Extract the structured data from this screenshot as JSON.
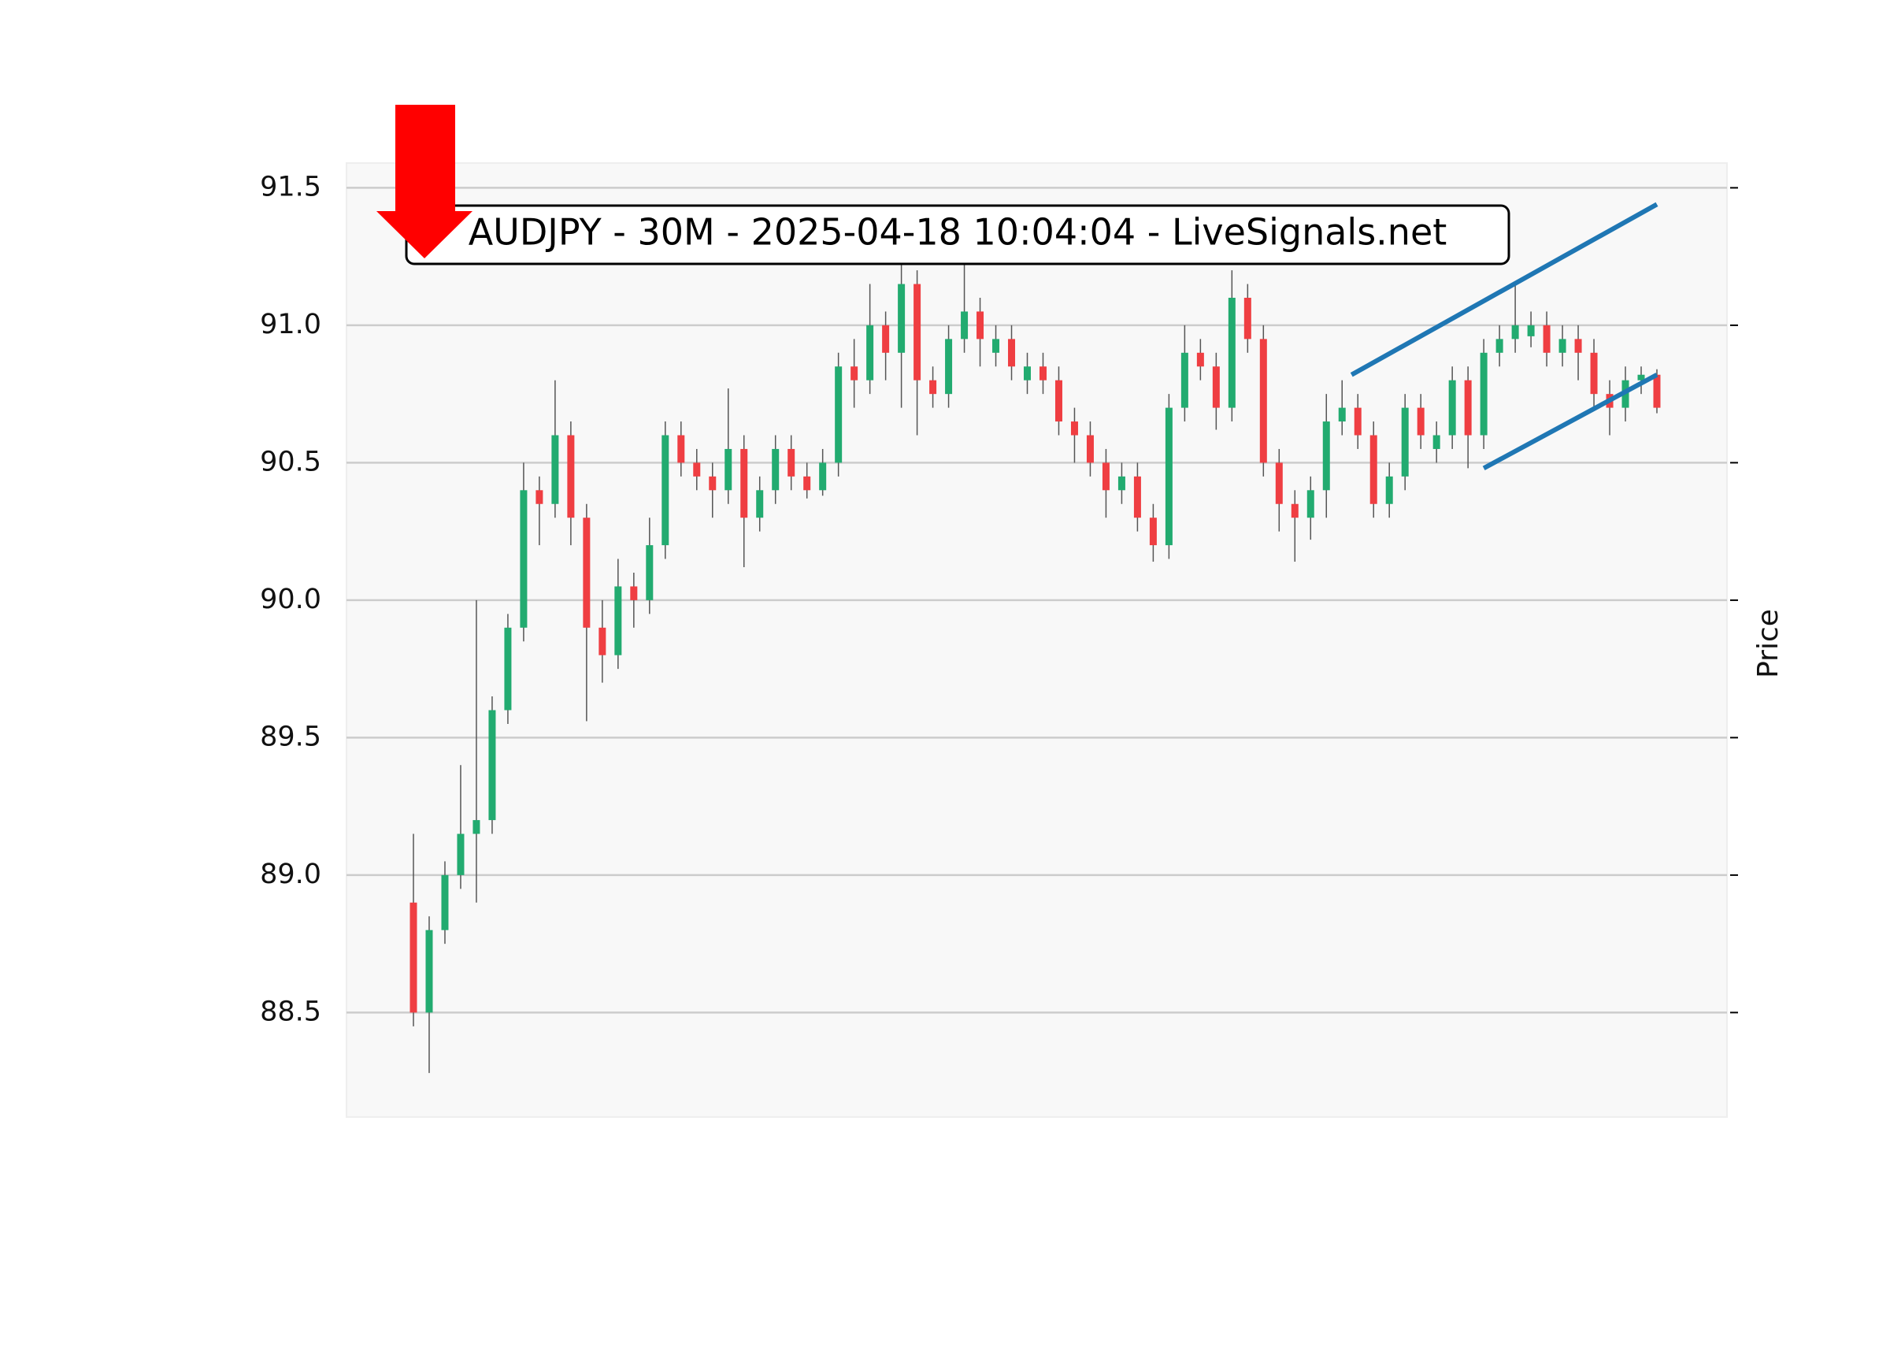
{
  "chart_data": {
    "type": "candlestick",
    "title": "AUDJPY - 30M - 2025-04-18 10:04:04 - LiveSignals.net",
    "y_label": "Price",
    "ylim": [
      88.12,
      91.59
    ],
    "yticks": [
      88.5,
      {
        "value": 89,
        "label": "89.0"
      },
      89.5,
      {
        "value": 90,
        "label": "90.0"
      },
      90.5,
      {
        "value": 91,
        "label": "91.0"
      },
      91.5
    ],
    "grid": true,
    "up_color": "#22ab70",
    "down_color": "#ef3e42",
    "open": [
      88.9,
      88.5,
      88.8,
      89.0,
      89.15,
      89.2,
      89.6,
      89.9,
      90.4,
      90.35,
      90.6,
      90.3,
      89.9,
      89.8,
      90.05,
      90.0,
      90.2,
      90.6,
      90.5,
      90.45,
      90.4,
      90.55,
      90.3,
      90.4,
      90.55,
      90.45,
      90.4,
      90.5,
      90.85,
      90.8,
      91.0,
      90.9,
      91.15,
      90.8,
      90.75,
      90.95,
      91.05,
      90.9,
      90.95,
      90.8,
      90.85,
      90.8,
      90.65,
      90.6,
      90.5,
      90.4,
      90.45,
      90.3,
      90.2,
      90.7,
      90.9,
      90.85,
      90.7,
      91.1,
      90.95,
      90.5,
      90.35,
      90.3,
      90.4,
      90.65,
      90.7,
      90.6,
      90.35,
      90.45,
      90.7,
      90.55,
      90.6,
      90.8,
      90.6,
      90.9,
      90.95,
      90.96,
      91.0,
      90.9,
      90.95,
      90.9,
      90.75,
      90.7,
      90.8,
      90.82
    ],
    "high": [
      89.15,
      88.85,
      89.05,
      89.4,
      90.0,
      89.65,
      89.95,
      90.5,
      90.45,
      90.8,
      90.65,
      90.35,
      90.0,
      90.15,
      90.1,
      90.3,
      90.65,
      90.65,
      90.55,
      90.5,
      90.77,
      90.6,
      90.45,
      90.6,
      90.6,
      90.5,
      90.55,
      90.9,
      90.95,
      91.15,
      91.05,
      91.25,
      91.2,
      90.85,
      91.0,
      91.25,
      91.1,
      91.0,
      91.0,
      90.9,
      90.9,
      90.85,
      90.7,
      90.65,
      90.55,
      90.5,
      90.5,
      90.35,
      90.75,
      91.0,
      90.95,
      90.9,
      91.2,
      91.15,
      91.0,
      90.55,
      90.4,
      90.45,
      90.75,
      90.8,
      90.75,
      90.65,
      90.5,
      90.75,
      90.75,
      90.65,
      90.85,
      90.85,
      90.95,
      91.0,
      91.15,
      91.05,
      91.05,
      91.0,
      91.0,
      90.95,
      90.8,
      90.85,
      90.85,
      90.84
    ],
    "low": [
      88.45,
      88.28,
      88.75,
      88.95,
      88.9,
      89.15,
      89.55,
      89.85,
      90.2,
      90.3,
      90.2,
      89.56,
      89.7,
      89.75,
      89.9,
      89.95,
      90.15,
      90.45,
      90.4,
      90.3,
      90.35,
      90.12,
      90.25,
      90.35,
      90.4,
      90.37,
      90.38,
      90.45,
      90.7,
      90.75,
      90.8,
      90.7,
      90.6,
      90.7,
      90.7,
      90.9,
      90.85,
      90.85,
      90.8,
      90.75,
      90.75,
      90.6,
      90.5,
      90.45,
      90.3,
      90.35,
      90.25,
      90.14,
      90.15,
      90.65,
      90.8,
      90.62,
      90.65,
      90.9,
      90.45,
      90.25,
      90.14,
      90.22,
      90.3,
      90.6,
      90.55,
      90.3,
      90.3,
      90.4,
      90.55,
      90.5,
      90.55,
      90.48,
      90.55,
      90.85,
      90.9,
      90.92,
      90.85,
      90.85,
      90.8,
      90.7,
      90.6,
      90.65,
      90.75,
      90.68
    ],
    "close": [
      88.5,
      88.8,
      89.0,
      89.15,
      89.2,
      89.6,
      89.9,
      90.4,
      90.35,
      90.6,
      90.3,
      89.9,
      89.8,
      90.05,
      90.0,
      90.2,
      90.6,
      90.5,
      90.45,
      90.4,
      90.55,
      90.3,
      90.4,
      90.55,
      90.45,
      90.4,
      90.5,
      90.85,
      90.8,
      91.0,
      90.9,
      91.15,
      90.8,
      90.75,
      90.95,
      91.05,
      90.95,
      90.95,
      90.85,
      90.85,
      90.8,
      90.65,
      90.6,
      90.5,
      90.4,
      90.45,
      90.3,
      90.2,
      90.7,
      90.9,
      90.85,
      90.7,
      91.1,
      90.95,
      90.5,
      90.35,
      90.3,
      90.4,
      90.65,
      90.7,
      90.6,
      90.35,
      90.45,
      90.7,
      90.6,
      90.6,
      90.8,
      90.6,
      90.9,
      90.95,
      91.0,
      91.0,
      90.9,
      90.95,
      90.9,
      90.75,
      90.7,
      90.8,
      90.82,
      90.7
    ],
    "trendlines": [
      {
        "x": [
          59.6,
          79
        ],
        "values": [
          90.82,
          91.44
        ],
        "color": "#1f77b4"
      },
      {
        "x": [
          68,
          79
        ],
        "values": [
          90.48,
          90.82
        ],
        "color": "#1f77b4"
      }
    ]
  }
}
